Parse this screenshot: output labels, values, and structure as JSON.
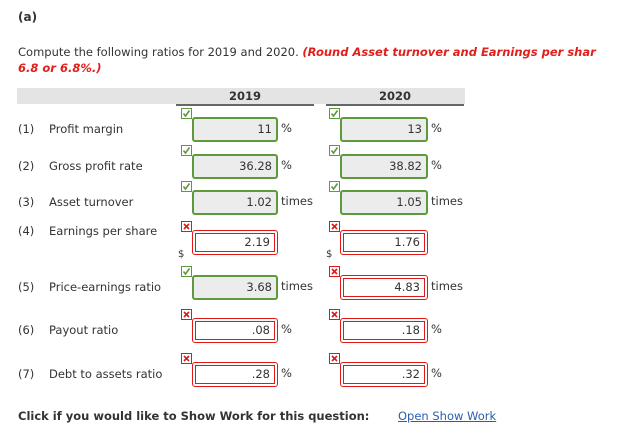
{
  "header": {
    "part": "(a)",
    "instruction": "Compute the following ratios for 2019 and 2020. ",
    "note_lines": [
      "(Round Asset turnover and Earnings per shar",
      "6.8 or 6.8%.)"
    ]
  },
  "table": {
    "columns": [
      "2019",
      "2020"
    ],
    "rows": [
      {
        "number": "(1)",
        "label": "Profit margin",
        "unit": "%",
        "cells": [
          {
            "value": "11",
            "status": "correct"
          },
          {
            "value": "13",
            "status": "correct"
          }
        ]
      },
      {
        "number": "(2)",
        "label": "Gross profit rate",
        "unit": "%",
        "cells": [
          {
            "value": "36.28",
            "status": "correct"
          },
          {
            "value": "38.82",
            "status": "correct"
          }
        ]
      },
      {
        "number": "(3)",
        "label": "Asset turnover",
        "unit": "times",
        "cells": [
          {
            "value": "1.02",
            "status": "correct"
          },
          {
            "value": "1.05",
            "status": "correct"
          }
        ]
      },
      {
        "number": "(4)",
        "label": "Earnings per share",
        "prefix": "$",
        "cells": [
          {
            "value": "2.19",
            "status": "incorrect"
          },
          {
            "value": "1.76",
            "status": "incorrect"
          }
        ]
      },
      {
        "number": "(5)",
        "label": "Price-earnings ratio",
        "unit": "times",
        "cells": [
          {
            "value": "3.68",
            "status": "correct"
          },
          {
            "value": "4.83",
            "status": "incorrect"
          }
        ]
      },
      {
        "number": "(6)",
        "label": "Payout ratio",
        "unit": "%",
        "cells": [
          {
            "value": ".08",
            "status": "incorrect"
          },
          {
            "value": ".18",
            "status": "incorrect"
          }
        ]
      },
      {
        "number": "(7)",
        "label": "Debt to assets ratio",
        "unit": "%",
        "cells": [
          {
            "value": ".28",
            "status": "incorrect"
          },
          {
            "value": ".32",
            "status": "incorrect"
          }
        ]
      }
    ]
  },
  "footer": {
    "text": "Click if you would like to Show Work for this question:",
    "link": "Open Show Work"
  }
}
